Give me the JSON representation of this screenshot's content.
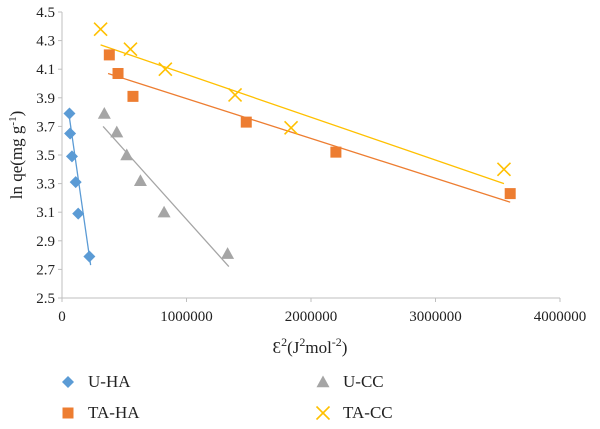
{
  "chart_data": {
    "type": "scatter",
    "xlabel": "Ɛ²(J²mol⁻²)",
    "ylabel_parts": {
      "main": "ln qe(mg g",
      "sup": "-1",
      "end": ")"
    },
    "xlabel_parts": {
      "eps": "Ɛ",
      "sup1": "2",
      "mid": "(J",
      "sup2": "2",
      "mol": "mol",
      "sup3": "-2",
      "end": ")"
    },
    "xlim": [
      0,
      4000000
    ],
    "ylim": [
      2.5,
      4.5
    ],
    "xticks": [
      0,
      1000000,
      2000000,
      3000000,
      4000000
    ],
    "xtick_labels": [
      "0",
      "1000000",
      "2000000",
      "3000000",
      "4000000"
    ],
    "yticks": [
      2.5,
      2.7,
      2.9,
      3.1,
      3.3,
      3.5,
      3.7,
      3.9,
      4.1,
      4.3,
      4.5
    ],
    "ytick_labels": [
      "2.5",
      "2.7",
      "2.9",
      "3.1",
      "3.3",
      "3.5",
      "3.7",
      "3.9",
      "4.1",
      "4.3",
      "4.5"
    ],
    "legend_position": "bottom",
    "series": [
      {
        "name": "U-HA",
        "marker": "diamond",
        "color": "#5B9BD5",
        "x": [
          60000,
          65000,
          80000,
          110000,
          130000,
          220000
        ],
        "y": [
          3.79,
          3.65,
          3.49,
          3.31,
          3.09,
          2.79
        ],
        "trendline": [
          [
            50000,
            3.82
          ],
          [
            230000,
            2.73
          ]
        ]
      },
      {
        "name": "U-CC",
        "marker": "triangle",
        "color": "#A5A5A5",
        "x": [
          340000,
          440000,
          520000,
          630000,
          820000,
          1330000
        ],
        "y": [
          3.79,
          3.66,
          3.5,
          3.32,
          3.1,
          2.81
        ],
        "trendline": [
          [
            330000,
            3.7
          ],
          [
            1340000,
            2.72
          ]
        ]
      },
      {
        "name": "TA-HA",
        "marker": "square",
        "color": "#ED7D31",
        "x": [
          380000,
          450000,
          570000,
          1480000,
          2200000,
          3600000
        ],
        "y": [
          4.2,
          4.07,
          3.91,
          3.73,
          3.52,
          3.23
        ],
        "trendline": [
          [
            370000,
            4.07
          ],
          [
            3600000,
            3.17
          ]
        ]
      },
      {
        "name": "TA-CC",
        "marker": "x",
        "color": "#FFC000",
        "x": [
          310000,
          550000,
          830000,
          1390000,
          1840000,
          3550000
        ],
        "y": [
          4.38,
          4.24,
          4.1,
          3.92,
          3.69,
          3.4
        ],
        "trendline": [
          [
            310000,
            4.27
          ],
          [
            3550000,
            3.3
          ]
        ]
      }
    ]
  }
}
